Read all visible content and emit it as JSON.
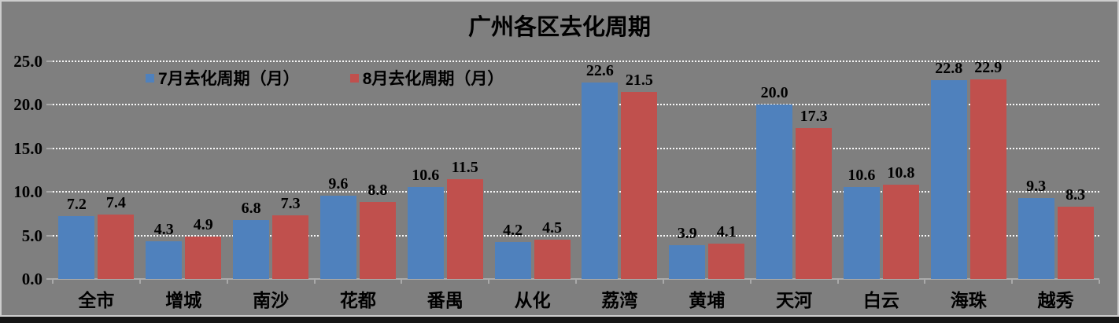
{
  "title": "广州各区去化周期",
  "colors": {
    "background": "#7F7F7F",
    "series_july": "#4F81BD",
    "series_august": "#C0504D",
    "gridline": "#F8F8F8",
    "axis": "#A9A9A9",
    "text": "#000000",
    "frame_light": "#CDCDCD",
    "frame_dark": "#161616"
  },
  "chart_data": {
    "type": "bar",
    "title": "广州各区去化周期",
    "categories": [
      "全市",
      "增城",
      "南沙",
      "花都",
      "番禺",
      "从化",
      "荔湾",
      "黄埔",
      "天河",
      "白云",
      "海珠",
      "越秀"
    ],
    "series": [
      {
        "name": "7月去化周期（月）",
        "color": "#4F81BD",
        "values": [
          7.2,
          4.3,
          6.8,
          9.6,
          10.6,
          4.2,
          22.6,
          3.9,
          20.0,
          10.6,
          22.8,
          9.3
        ]
      },
      {
        "name": "8月去化周期（月）",
        "color": "#C0504D",
        "values": [
          7.4,
          4.9,
          7.3,
          8.8,
          11.5,
          4.5,
          21.5,
          4.1,
          17.3,
          10.8,
          22.9,
          8.3
        ]
      }
    ],
    "xlabel": "",
    "ylabel": "",
    "ylim": [
      0,
      25
    ],
    "yticks": [
      "0.0",
      "5.0",
      "10.0",
      "15.0",
      "20.0",
      "25.0"
    ],
    "grid": "horizontal-dotted-white",
    "legend_position": "top-inside-left",
    "value_labels": true,
    "value_label_format": "one-decimal"
  }
}
